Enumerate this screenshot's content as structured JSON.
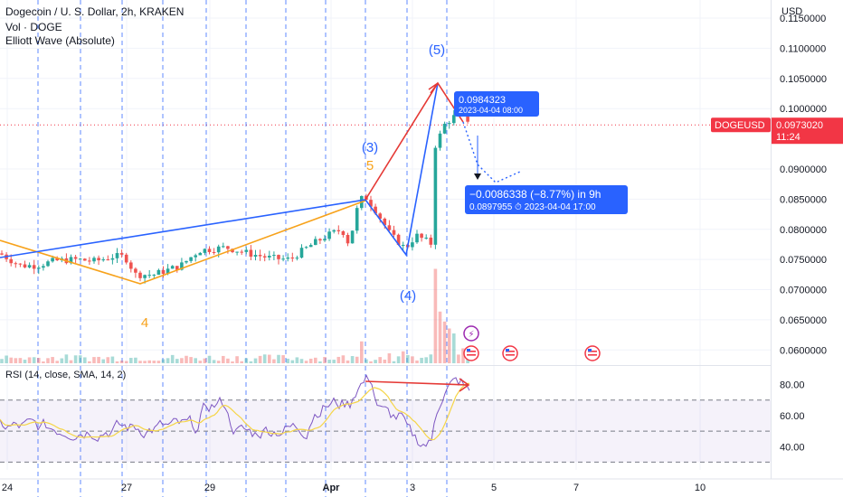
{
  "header": {
    "title": "Dogecoin / U. S. Dollar, 2h, KRAKEN",
    "vol": "Vol · DOGE",
    "indicator": "Elliott Wave (Absolute)"
  },
  "rsi": {
    "label": "RSI (14, close, SMA, 14, 2)",
    "ylim": [
      25,
      92
    ],
    "levels": [
      70,
      50,
      30
    ],
    "ticks": [
      "80.00",
      "60.00",
      "40.00"
    ]
  },
  "colors": {
    "up": "#26a69a",
    "down": "#ef5350",
    "wave_blue": "#2962ff",
    "wave_orange": "#f7a21b",
    "wave_red": "#e53935",
    "rsi_line": "#7e57c2",
    "rsi_ma": "#f5d547",
    "price_tag": "#f23645",
    "projection": "#2962ff"
  },
  "chart_data": {
    "type": "candlestick",
    "symbol": "DOGEUSD",
    "currency_label": "USD",
    "ylim": [
      0.0575,
      0.118
    ],
    "y_ticks": [
      "0.1150000",
      "0.1100000",
      "0.1050000",
      "0.1000000",
      "0.0900000",
      "0.0850000",
      "0.0800000",
      "0.0750000",
      "0.0700000",
      "0.0650000",
      "0.0600000"
    ],
    "x_ticks": [
      "24",
      "27",
      "29",
      "Apr",
      "3",
      "5",
      "7",
      "10"
    ],
    "last_price": {
      "label": "DOGEUSD",
      "value": "0.0973020",
      "time": "11:24"
    },
    "tooltip_high": {
      "value": "0.0984323",
      "date": "2023-04-04 08:00"
    },
    "tooltip_projection": {
      "change": "−0.0086338 (−8.77%) in 9h",
      "value": "0.0897955",
      "date": "2023-04-04  17:00"
    },
    "wave_labels": {
      "blue": [
        "(3)",
        "(4)",
        "(5)"
      ],
      "orange": [
        "5",
        "4"
      ]
    },
    "trend": [
      [
        0.078,
        -9
      ],
      [
        0.076,
        0
      ],
      [
        0.074,
        22
      ],
      [
        0.074,
        40
      ],
      [
        0.0748,
        62
      ],
      [
        0.075,
        85
      ],
      [
        0.0747,
        105
      ],
      [
        0.0755,
        125
      ],
      [
        0.0755,
        138
      ],
      [
        0.0725,
        150
      ],
      [
        0.0725,
        170
      ],
      [
        0.074,
        200
      ],
      [
        0.0765,
        220
      ],
      [
        0.077,
        250
      ],
      [
        0.076,
        275
      ],
      [
        0.0752,
        300
      ],
      [
        0.075,
        320
      ],
      [
        0.0775,
        345
      ],
      [
        0.079,
        362
      ],
      [
        0.08,
        378
      ],
      [
        0.0775,
        386
      ],
      [
        0.083,
        394
      ],
      [
        0.0858,
        402
      ],
      [
        0.083,
        416
      ],
      [
        0.079,
        432
      ],
      [
        0.078,
        440
      ],
      [
        0.0768,
        448
      ],
      [
        0.079,
        460
      ],
      [
        0.0775,
        478
      ],
      [
        0.094,
        482
      ],
      [
        0.0975,
        492
      ],
      [
        0.099,
        505
      ],
      [
        0.0988,
        512
      ],
      [
        0.0975,
        522
      ]
    ],
    "volume_spikes": [
      [
        402,
        0.22
      ],
      [
        481,
        0.95
      ],
      [
        486,
        0.52
      ],
      [
        492,
        0.42
      ],
      [
        498,
        0.35
      ],
      [
        504,
        0.3
      ],
      [
        514,
        0.15
      ],
      [
        430,
        0.1
      ],
      [
        446,
        0.12
      ]
    ]
  }
}
